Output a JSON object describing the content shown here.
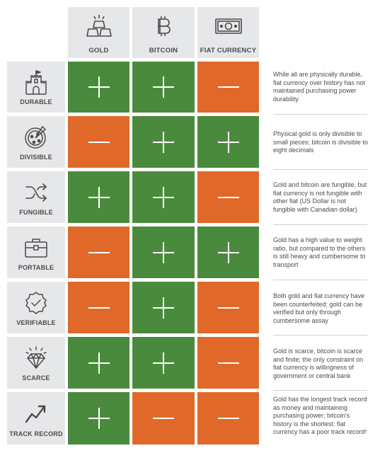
{
  "columns": [
    {
      "label": "GOLD",
      "icon": "gold-bars-icon"
    },
    {
      "label": "BITCOIN",
      "icon": "bitcoin-icon"
    },
    {
      "label": "FIAT CURRENCY",
      "icon": "banknote-icon"
    }
  ],
  "rows": [
    {
      "label": "DURABLE",
      "icon": "castle-icon",
      "values": [
        "+",
        "+",
        "-"
      ],
      "note": "While all are physically durable, fiat currency over history has not maintained purchasing power durability"
    },
    {
      "label": "DIVISIBLE",
      "icon": "pizza-icon",
      "values": [
        "-",
        "+",
        "+"
      ],
      "note": "Physical gold is only divisible to small pieces; bitcoin is divisible to eight decimals"
    },
    {
      "label": "FUNGIBLE",
      "icon": "shuffle-icon",
      "values": [
        "+",
        "+",
        "-"
      ],
      "note": "Gold and bitcoin are fungible, but fiat currency is not fungible with other fiat (US Dollar is not fungible with Canadian dollar)"
    },
    {
      "label": "PORTABLE",
      "icon": "briefcase-icon",
      "values": [
        "-",
        "+",
        "+"
      ],
      "note": "Gold has a high value to weight ratio, but compared to the others is still heavy and cumbersome to transport"
    },
    {
      "label": "VERIFIABLE",
      "icon": "verified-badge-icon",
      "values": [
        "-",
        "+",
        "-"
      ],
      "note": "Both gold and fiat currency have been counterfeited; gold can be verified but only through cumbersome assay"
    },
    {
      "label": "SCARCE",
      "icon": "diamond-icon",
      "values": [
        "+",
        "+",
        "-"
      ],
      "note": "Gold is scarce, bitcoin is scarce and finite; the only constraint on fiat currency is willingness of government or central bank"
    },
    {
      "label": "TRACK RECORD",
      "icon": "trend-up-icon",
      "values": [
        "+",
        "-",
        "-"
      ],
      "note": "Gold has the longest track record as money and maintaining purchasing power; bitcoin's history is the shortest; fiat currency has a poor track record²"
    }
  ],
  "colors": {
    "plus": "#4a8a3d",
    "minus": "#e0692a",
    "label_bg": "#e6e7e8",
    "text": "#4b4b4d"
  }
}
